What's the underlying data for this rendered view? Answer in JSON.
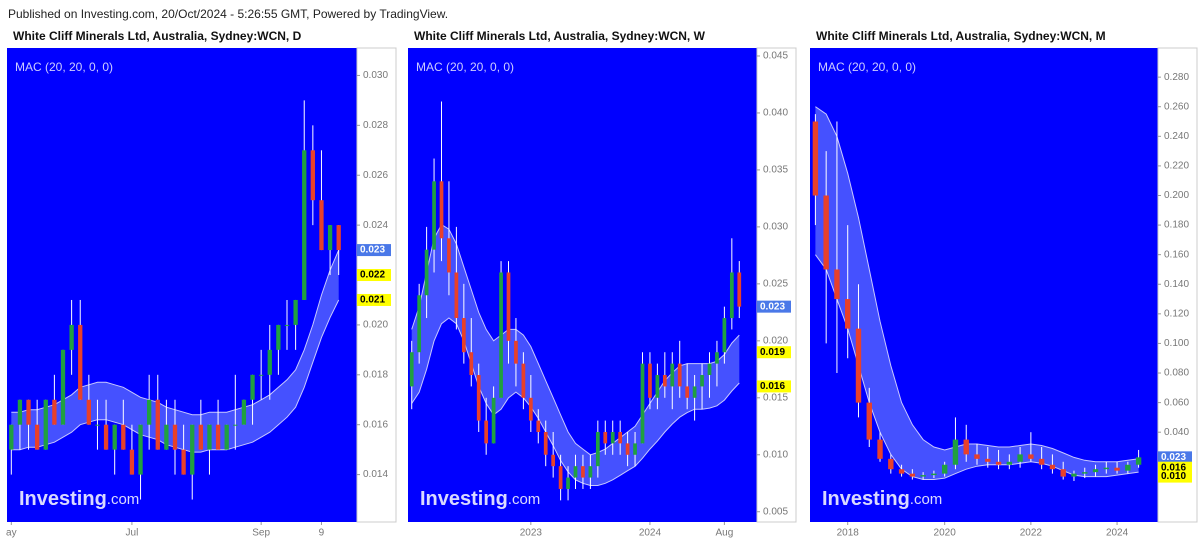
{
  "header": "Published on Investing.com, 20/Oct/2024 - 5:26:55 GMT, Powered by TradingView.",
  "indicator": "MAC (20, 20, 0, 0)",
  "watermark": {
    "brand": "Investing",
    "suffix": ".com"
  },
  "chart_data": [
    {
      "type": "candlestick",
      "title": "White Cliff Minerals Ltd, Australia, Sydney:WCN, D",
      "up_color": "#20a040",
      "down_color": "#e8402a",
      "band_color": "#5c6cff",
      "categories": [
        "ay",
        null,
        null,
        null,
        null,
        null,
        null,
        null,
        null,
        null,
        null,
        null,
        null,
        null,
        "Jul",
        null,
        null,
        null,
        null,
        null,
        null,
        null,
        null,
        null,
        null,
        null,
        null,
        null,
        null,
        "Sep",
        null,
        null,
        null,
        null,
        null,
        null,
        "9",
        null,
        null
      ],
      "open": [
        0.015,
        0.016,
        0.017,
        0.016,
        0.015,
        0.017,
        0.016,
        0.019,
        0.02,
        0.017,
        0.016,
        0.016,
        0.015,
        0.016,
        0.015,
        0.014,
        0.016,
        0.017,
        0.015,
        0.016,
        0.015,
        0.014,
        0.016,
        0.015,
        0.016,
        0.015,
        0.016,
        0.016,
        0.017,
        0.018,
        0.018,
        0.019,
        0.02,
        0.02,
        0.021,
        0.027,
        0.025,
        0.023,
        0.024
      ],
      "high": [
        0.016,
        0.017,
        0.017,
        0.017,
        0.017,
        0.018,
        0.019,
        0.021,
        0.021,
        0.018,
        0.017,
        0.017,
        0.016,
        0.017,
        0.016,
        0.016,
        0.018,
        0.018,
        0.017,
        0.017,
        0.016,
        0.016,
        0.017,
        0.016,
        0.017,
        0.016,
        0.018,
        0.017,
        0.018,
        0.019,
        0.02,
        0.02,
        0.021,
        0.021,
        0.029,
        0.028,
        0.027,
        0.024,
        0.024
      ],
      "low": [
        0.014,
        0.015,
        0.015,
        0.015,
        0.015,
        0.016,
        0.016,
        0.018,
        0.017,
        0.016,
        0.015,
        0.015,
        0.014,
        0.015,
        0.014,
        0.013,
        0.015,
        0.015,
        0.015,
        0.014,
        0.014,
        0.013,
        0.015,
        0.014,
        0.015,
        0.015,
        0.015,
        0.016,
        0.016,
        0.017,
        0.017,
        0.018,
        0.019,
        0.019,
        0.021,
        0.024,
        0.023,
        0.022,
        0.022
      ],
      "close": [
        0.016,
        0.017,
        0.016,
        0.015,
        0.017,
        0.016,
        0.019,
        0.02,
        0.017,
        0.016,
        0.016,
        0.015,
        0.016,
        0.015,
        0.014,
        0.016,
        0.017,
        0.015,
        0.016,
        0.015,
        0.014,
        0.016,
        0.015,
        0.016,
        0.015,
        0.016,
        0.016,
        0.017,
        0.018,
        0.018,
        0.019,
        0.02,
        0.02,
        0.021,
        0.027,
        0.025,
        0.023,
        0.024,
        0.023
      ],
      "upper": [
        0.0165,
        0.0165,
        0.0166,
        0.0166,
        0.0167,
        0.0168,
        0.017,
        0.0172,
        0.0175,
        0.0176,
        0.0177,
        0.0177,
        0.0176,
        0.0175,
        0.0173,
        0.0171,
        0.017,
        0.0169,
        0.0167,
        0.0166,
        0.0165,
        0.0164,
        0.0164,
        0.0165,
        0.0165,
        0.0165,
        0.0166,
        0.0167,
        0.0168,
        0.017,
        0.0172,
        0.0175,
        0.0178,
        0.0182,
        0.019,
        0.02,
        0.0212,
        0.0222,
        0.023
      ],
      "lower": [
        0.015,
        0.015,
        0.0151,
        0.0151,
        0.0152,
        0.0153,
        0.0155,
        0.0157,
        0.016,
        0.0161,
        0.0162,
        0.0162,
        0.0161,
        0.016,
        0.0158,
        0.0156,
        0.0155,
        0.0154,
        0.0152,
        0.0151,
        0.015,
        0.0149,
        0.0149,
        0.015,
        0.015,
        0.015,
        0.0151,
        0.0152,
        0.0153,
        0.0155,
        0.0157,
        0.016,
        0.0163,
        0.0167,
        0.0175,
        0.0185,
        0.0195,
        0.0203,
        0.021
      ],
      "ylim": [
        0.0121,
        0.0311
      ],
      "yticks": [
        {
          "value": 0.014,
          "label": "0.014"
        },
        {
          "value": 0.016,
          "label": "0.016"
        },
        {
          "value": 0.018,
          "label": "0.018"
        },
        {
          "value": 0.02,
          "label": "0.020"
        },
        {
          "value": 0.022,
          "label": "0.022"
        },
        {
          "value": 0.024,
          "label": "0.024"
        },
        {
          "value": 0.026,
          "label": "0.026"
        },
        {
          "value": 0.028,
          "label": "0.028"
        },
        {
          "value": 0.03,
          "label": "0.030"
        }
      ],
      "price_labels": [
        {
          "value": 0.023,
          "label": "0.023",
          "color": "#4a78e8"
        },
        {
          "value": 0.022,
          "label": "0.022",
          "color": "#ffff00"
        },
        {
          "value": 0.021,
          "label": "0.021",
          "color": "#ffff00"
        }
      ]
    },
    {
      "type": "candlestick",
      "title": "White Cliff Minerals Ltd, Australia, Sydney:WCN, W",
      "up_color": "#20a040",
      "down_color": "#e8402a",
      "band_color": "#5c6cff",
      "categories": [
        null,
        null,
        null,
        null,
        null,
        null,
        null,
        null,
        null,
        null,
        null,
        null,
        null,
        null,
        null,
        null,
        "2023",
        null,
        null,
        null,
        null,
        null,
        null,
        null,
        null,
        null,
        null,
        null,
        null,
        null,
        null,
        null,
        "2024",
        null,
        null,
        null,
        null,
        null,
        null,
        null,
        null,
        null,
        "Aug",
        null,
        null
      ],
      "open": [
        0.016,
        0.019,
        0.024,
        0.028,
        0.034,
        0.029,
        0.026,
        0.022,
        0.019,
        0.017,
        0.013,
        0.011,
        0.015,
        0.026,
        0.02,
        0.018,
        0.015,
        0.013,
        0.012,
        0.01,
        0.009,
        0.007,
        0.008,
        0.009,
        0.008,
        0.009,
        0.012,
        0.011,
        0.012,
        0.011,
        0.01,
        0.011,
        0.018,
        0.015,
        0.017,
        0.016,
        0.018,
        0.016,
        0.015,
        0.016,
        0.017,
        0.018,
        0.019,
        0.022,
        0.026
      ],
      "high": [
        0.02,
        0.025,
        0.03,
        0.036,
        0.041,
        0.034,
        0.03,
        0.025,
        0.022,
        0.018,
        0.015,
        0.016,
        0.027,
        0.027,
        0.022,
        0.019,
        0.017,
        0.014,
        0.013,
        0.012,
        0.01,
        0.009,
        0.01,
        0.01,
        0.01,
        0.013,
        0.013,
        0.013,
        0.013,
        0.012,
        0.012,
        0.019,
        0.019,
        0.018,
        0.019,
        0.019,
        0.02,
        0.018,
        0.017,
        0.018,
        0.019,
        0.02,
        0.023,
        0.029,
        0.027
      ],
      "low": [
        0.014,
        0.018,
        0.022,
        0.026,
        0.027,
        0.024,
        0.021,
        0.018,
        0.016,
        0.012,
        0.01,
        0.011,
        0.015,
        0.018,
        0.016,
        0.014,
        0.012,
        0.011,
        0.009,
        0.008,
        0.006,
        0.006,
        0.007,
        0.007,
        0.007,
        0.008,
        0.01,
        0.01,
        0.01,
        0.009,
        0.009,
        0.011,
        0.014,
        0.014,
        0.015,
        0.014,
        0.015,
        0.014,
        0.013,
        0.014,
        0.015,
        0.016,
        0.018,
        0.021,
        0.022
      ],
      "close": [
        0.019,
        0.024,
        0.028,
        0.034,
        0.029,
        0.026,
        0.022,
        0.019,
        0.017,
        0.013,
        0.011,
        0.015,
        0.026,
        0.02,
        0.018,
        0.015,
        0.013,
        0.012,
        0.01,
        0.009,
        0.007,
        0.008,
        0.009,
        0.008,
        0.009,
        0.012,
        0.011,
        0.012,
        0.011,
        0.01,
        0.011,
        0.018,
        0.015,
        0.017,
        0.016,
        0.018,
        0.016,
        0.015,
        0.016,
        0.017,
        0.018,
        0.019,
        0.022,
        0.026,
        0.023
      ],
      "upper": [
        0.021,
        0.023,
        0.026,
        0.029,
        0.0302,
        0.0298,
        0.0285,
        0.0265,
        0.0245,
        0.0225,
        0.021,
        0.02,
        0.0205,
        0.021,
        0.021,
        0.0205,
        0.0195,
        0.018,
        0.0165,
        0.015,
        0.0135,
        0.012,
        0.011,
        0.0105,
        0.01,
        0.0102,
        0.0105,
        0.011,
        0.0115,
        0.012,
        0.0125,
        0.0135,
        0.0145,
        0.0155,
        0.0165,
        0.0172,
        0.0178,
        0.018,
        0.018,
        0.018,
        0.018,
        0.0182,
        0.0188,
        0.0198,
        0.0205
      ],
      "lower": [
        0.0145,
        0.0155,
        0.0175,
        0.02,
        0.0215,
        0.022,
        0.0215,
        0.02,
        0.018,
        0.016,
        0.0145,
        0.0135,
        0.014,
        0.015,
        0.0155,
        0.015,
        0.0142,
        0.0132,
        0.012,
        0.0108,
        0.0095,
        0.0085,
        0.0078,
        0.0075,
        0.0073,
        0.0073,
        0.0075,
        0.0078,
        0.0082,
        0.0086,
        0.009,
        0.0097,
        0.0105,
        0.0112,
        0.012,
        0.0127,
        0.0133,
        0.0137,
        0.014,
        0.014,
        0.0141,
        0.0143,
        0.0148,
        0.0156,
        0.0163
      ],
      "ylim": [
        0.0041,
        0.0457
      ],
      "yticks": [
        {
          "value": 0.005,
          "label": "0.005"
        },
        {
          "value": 0.01,
          "label": "0.010"
        },
        {
          "value": 0.015,
          "label": "0.015"
        },
        {
          "value": 0.02,
          "label": "0.020"
        },
        {
          "value": 0.025,
          "label": "0.025"
        },
        {
          "value": 0.03,
          "label": "0.030"
        },
        {
          "value": 0.035,
          "label": "0.035"
        },
        {
          "value": 0.04,
          "label": "0.040"
        },
        {
          "value": 0.045,
          "label": "0.045"
        }
      ],
      "price_labels": [
        {
          "value": 0.023,
          "label": "0.023",
          "color": "#4a78e8"
        },
        {
          "value": 0.019,
          "label": "0.019",
          "color": "#ffff00"
        },
        {
          "value": 0.016,
          "label": "0.016",
          "color": "#ffff00"
        }
      ]
    },
    {
      "type": "candlestick",
      "title": "White Cliff Minerals Ltd, Australia, Sydney:WCN, M",
      "up_color": "#20a040",
      "down_color": "#e8402a",
      "band_color": "#5c6cff",
      "categories": [
        null,
        null,
        null,
        "2018",
        null,
        null,
        null,
        null,
        null,
        null,
        null,
        null,
        "2020",
        null,
        null,
        null,
        null,
        null,
        null,
        null,
        "2022",
        null,
        null,
        null,
        null,
        null,
        null,
        null,
        "2024",
        null,
        null
      ],
      "open": [
        0.25,
        0.2,
        0.15,
        0.13,
        0.11,
        0.06,
        0.035,
        0.022,
        0.015,
        0.012,
        0.01,
        0.011,
        0.012,
        0.018,
        0.035,
        0.025,
        0.022,
        0.02,
        0.018,
        0.02,
        0.025,
        0.022,
        0.018,
        0.015,
        0.01,
        0.012,
        0.013,
        0.015,
        0.016,
        0.014,
        0.018
      ],
      "high": [
        0.255,
        0.23,
        0.25,
        0.18,
        0.14,
        0.07,
        0.04,
        0.025,
        0.018,
        0.015,
        0.013,
        0.014,
        0.02,
        0.05,
        0.045,
        0.032,
        0.03,
        0.028,
        0.025,
        0.03,
        0.04,
        0.03,
        0.025,
        0.02,
        0.014,
        0.016,
        0.018,
        0.02,
        0.02,
        0.02,
        0.028
      ],
      "low": [
        0.18,
        0.1,
        0.08,
        0.09,
        0.05,
        0.03,
        0.02,
        0.012,
        0.01,
        0.008,
        0.008,
        0.009,
        0.01,
        0.015,
        0.02,
        0.018,
        0.016,
        0.015,
        0.015,
        0.016,
        0.02,
        0.015,
        0.012,
        0.008,
        0.007,
        0.009,
        0.01,
        0.012,
        0.012,
        0.012,
        0.016
      ],
      "close": [
        0.2,
        0.15,
        0.13,
        0.11,
        0.06,
        0.035,
        0.022,
        0.015,
        0.012,
        0.01,
        0.011,
        0.012,
        0.018,
        0.035,
        0.025,
        0.022,
        0.02,
        0.018,
        0.02,
        0.025,
        0.022,
        0.018,
        0.015,
        0.01,
        0.012,
        0.013,
        0.015,
        0.016,
        0.014,
        0.018,
        0.023
      ],
      "upper": [
        0.26,
        0.255,
        0.24,
        0.215,
        0.185,
        0.15,
        0.115,
        0.085,
        0.06,
        0.045,
        0.035,
        0.03,
        0.028,
        0.03,
        0.032,
        0.032,
        0.031,
        0.03,
        0.03,
        0.031,
        0.032,
        0.031,
        0.029,
        0.026,
        0.023,
        0.021,
        0.02,
        0.02,
        0.02,
        0.021,
        0.022
      ],
      "lower": [
        0.16,
        0.15,
        0.13,
        0.11,
        0.085,
        0.06,
        0.04,
        0.025,
        0.015,
        0.01,
        0.008,
        0.008,
        0.009,
        0.012,
        0.015,
        0.017,
        0.018,
        0.018,
        0.018,
        0.019,
        0.02,
        0.019,
        0.017,
        0.014,
        0.011,
        0.01,
        0.01,
        0.01,
        0.011,
        0.012,
        0.013
      ],
      "ylim": [
        -0.0207,
        0.2997
      ],
      "yticks": [
        {
          "value": 0.04,
          "label": "0.040"
        },
        {
          "value": 0.06,
          "label": "0.060"
        },
        {
          "value": 0.08,
          "label": "0.080"
        },
        {
          "value": 0.1,
          "label": "0.100"
        },
        {
          "value": 0.12,
          "label": "0.120"
        },
        {
          "value": 0.14,
          "label": "0.140"
        },
        {
          "value": 0.16,
          "label": "0.160"
        },
        {
          "value": 0.18,
          "label": "0.180"
        },
        {
          "value": 0.2,
          "label": "0.200"
        },
        {
          "value": 0.22,
          "label": "0.220"
        },
        {
          "value": 0.24,
          "label": "0.240"
        },
        {
          "value": 0.26,
          "label": "0.260"
        },
        {
          "value": 0.28,
          "label": "0.280"
        }
      ],
      "price_labels": [
        {
          "value": 0.023,
          "label": "0.023",
          "color": "#4a78e8"
        },
        {
          "value": 0.016,
          "label": "0.016",
          "color": "#ffff00"
        },
        {
          "value": 0.01,
          "label": "0.010",
          "color": "#ffff00"
        }
      ]
    }
  ]
}
